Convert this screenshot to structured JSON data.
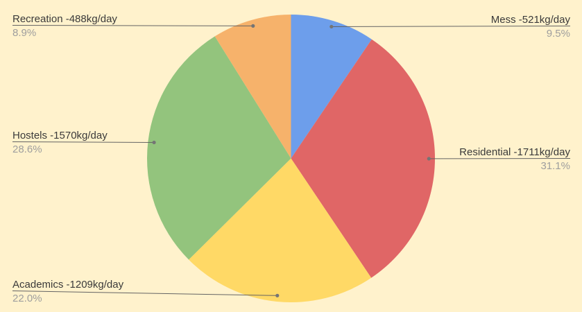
{
  "page": {
    "background": "#FFF2CC"
  },
  "chart_data": {
    "type": "pie",
    "title": "",
    "unit": "kg/day",
    "start_angle_deg": 0,
    "direction": "clockwise",
    "legend_position": "labeled",
    "total": 5499,
    "slices": [
      {
        "label": "Mess",
        "value": 521,
        "display": "Mess -521kg/day",
        "pct": "9.5%",
        "color": "#6D9EEB"
      },
      {
        "label": "Residential",
        "value": 1711,
        "display": "Residential -1711kg/day",
        "pct": "31.1%",
        "color": "#E06666"
      },
      {
        "label": "Academics",
        "value": 1209,
        "display": "Academics -1209kg/day",
        "pct": "22.0%",
        "color": "#FFD966"
      },
      {
        "label": "Hostels",
        "value": 1570,
        "display": "Hostels -1570kg/day",
        "pct": "28.6%",
        "color": "#93C47D"
      },
      {
        "label": "Recreation",
        "value": 488,
        "display": "Recreation -488kg/day",
        "pct": "8.9%",
        "color": "#F6B26B"
      }
    ],
    "label_text_color": "#3a3a3a",
    "pct_text_color": "#9e9e9e",
    "leader_line_color": "#636363",
    "leader_dot_color": "#757575"
  }
}
